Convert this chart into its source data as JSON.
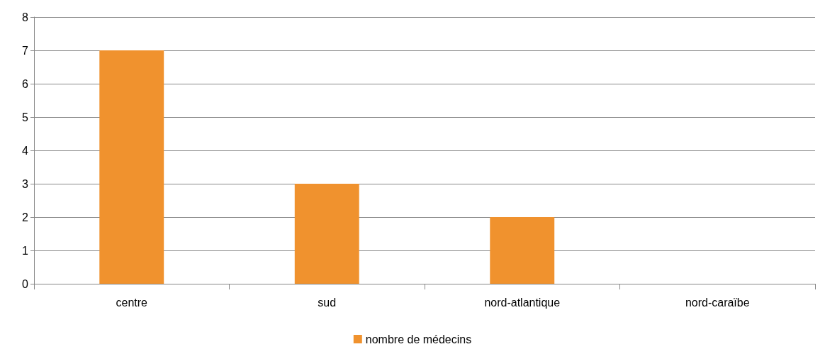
{
  "chart_data": {
    "type": "bar",
    "categories": [
      "centre",
      "sud",
      "nord-atlantique",
      "nord-caraïbe"
    ],
    "series": [
      {
        "name": "nombre de médecins",
        "color": "#f0922e",
        "values": [
          7,
          3,
          2,
          0
        ]
      }
    ],
    "ylim": [
      0,
      8
    ],
    "yticks": [
      0,
      1,
      2,
      3,
      4,
      5,
      6,
      7,
      8
    ],
    "grid": "y",
    "legend": "bottom"
  }
}
